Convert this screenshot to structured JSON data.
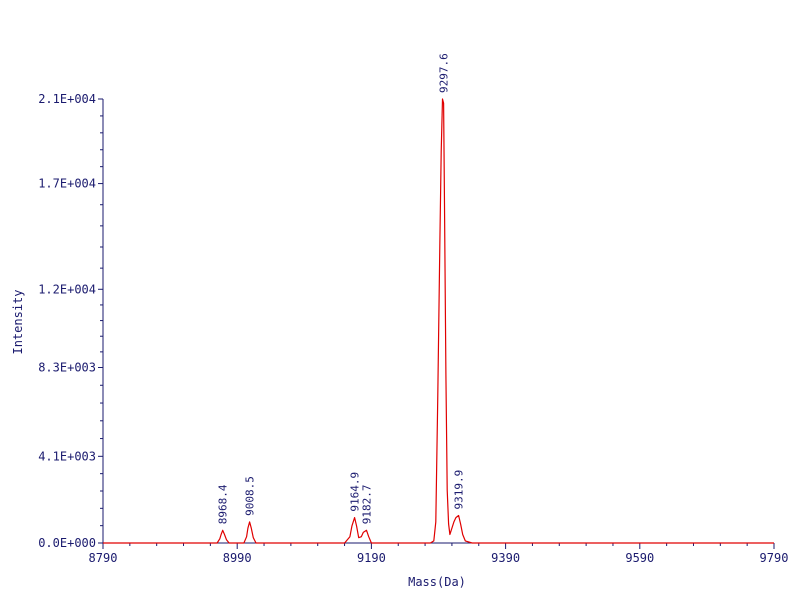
{
  "chart_data": {
    "type": "line",
    "xlabel": "Mass(Da)",
    "ylabel": "Intensity",
    "xlim": [
      8790,
      9790
    ],
    "ylim": [
      0,
      21000
    ],
    "x_ticks": [
      8790,
      8990,
      9190,
      9390,
      9590,
      9790
    ],
    "x_tick_labels": [
      "8790",
      "8990",
      "9190",
      "9390",
      "9590",
      "9790"
    ],
    "y_ticks": [
      0,
      4100,
      8300,
      12000,
      17000,
      21000
    ],
    "y_tick_labels": [
      "0.0E+000",
      "4.1E+003",
      "8.3E+003",
      "1.2E+004",
      "1.7E+004",
      "2.1E+004"
    ],
    "grid": false,
    "series": [
      {
        "color": "#e00000",
        "x": [
          8790,
          8960,
          8964,
          8966,
          8968.4,
          8971,
          8974,
          8978,
          9000,
          9004,
          9006,
          9008.5,
          9011,
          9014,
          9018,
          9150,
          9158,
          9161,
          9164.9,
          9168,
          9171,
          9175,
          9178,
          9182.7,
          9186,
          9190,
          9260,
          9278,
          9283,
          9286,
          9289,
          9292,
          9294,
          9296,
          9297.6,
          9299,
          9301,
          9303,
          9305,
          9307,
          9310,
          9313,
          9316,
          9319.9,
          9323,
          9326,
          9330,
          9340,
          9790
        ],
        "y": [
          0,
          0,
          200,
          400,
          600,
          400,
          150,
          0,
          0,
          300,
          700,
          1000,
          700,
          250,
          0,
          0,
          300,
          800,
          1200,
          800,
          250,
          300,
          500,
          600,
          300,
          0,
          0,
          0,
          100,
          1000,
          7000,
          14000,
          18500,
          21000,
          20800,
          16000,
          8000,
          2500,
          900,
          400,
          700,
          1000,
          1200,
          1300,
          900,
          400,
          100,
          0,
          0
        ]
      }
    ],
    "peak_labels": [
      {
        "x": 8968.4,
        "y": 600,
        "text": "8968.4"
      },
      {
        "x": 9008.5,
        "y": 1000,
        "text": "9008.5"
      },
      {
        "x": 9164.9,
        "y": 1200,
        "text": "9164.9"
      },
      {
        "x": 9182.7,
        "y": 600,
        "text": "9182.7"
      },
      {
        "x": 9297.6,
        "y": 21000,
        "text": "9297.6"
      },
      {
        "x": 9319.9,
        "y": 1300,
        "text": "9319.9"
      }
    ],
    "colors": {
      "axis": "#1a1a6e",
      "text": "#1a1a6e",
      "line": "#e00000"
    }
  }
}
